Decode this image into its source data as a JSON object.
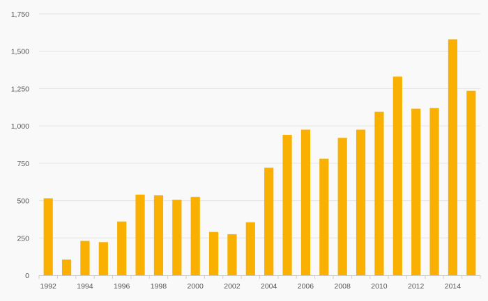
{
  "chart_data": {
    "type": "bar",
    "title": "",
    "xlabel": "",
    "ylabel": "",
    "categories": [
      "1992",
      "1993",
      "1994",
      "1995",
      "1996",
      "1997",
      "1998",
      "1999",
      "2000",
      "2001",
      "2002",
      "2003",
      "2004",
      "2005",
      "2006",
      "2007",
      "2008",
      "2009",
      "2010",
      "2011",
      "2012",
      "2013",
      "2014",
      "2015"
    ],
    "values": [
      515,
      105,
      230,
      222,
      360,
      540,
      535,
      505,
      525,
      290,
      275,
      355,
      720,
      940,
      975,
      780,
      920,
      975,
      1095,
      1330,
      1115,
      1120,
      1580,
      1235
    ],
    "x_tick_labels": [
      "1992",
      "1994",
      "1996",
      "1998",
      "2000",
      "2002",
      "2004",
      "2006",
      "2008",
      "2010",
      "2012",
      "2014"
    ],
    "y_tick_labels": [
      "0",
      "250",
      "500",
      "750",
      "1,000",
      "1,250",
      "1,500",
      "1,750"
    ],
    "y_ticks": [
      0,
      250,
      500,
      750,
      1000,
      1250,
      1500,
      1750
    ],
    "ylim": [
      0,
      1750
    ],
    "grid": true,
    "legend": "none",
    "colors": {
      "bar": "#f9b000",
      "grid": "#e4e4e4",
      "axis": "#cccccc",
      "background": "#f9f9f9",
      "text": "#555555"
    }
  }
}
